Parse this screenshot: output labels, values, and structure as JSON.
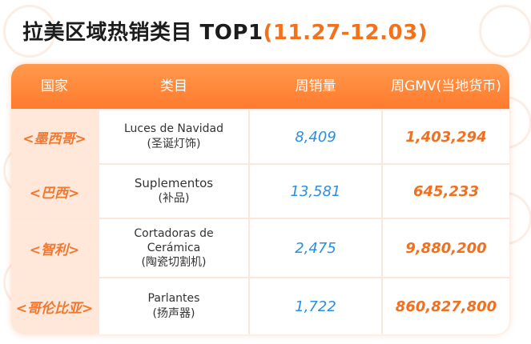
{
  "title": {
    "main": "拉美区域热销类目 TOP1",
    "date": "(11.27-12.03)"
  },
  "table": {
    "headers": [
      "国家",
      "类目",
      "周销量",
      "周GMV(当地货币)"
    ],
    "rows": [
      {
        "country": "<墨西哥>",
        "category_es": "Luces de Navidad",
        "category_zh": "(圣诞灯饰)",
        "weekly_sales": "8,409",
        "weekly_gmv": "1,403,294"
      },
      {
        "country": "<巴西>",
        "category_es": "Suplementos",
        "category_zh": "(补品)",
        "weekly_sales": "13,581",
        "weekly_gmv": "645,233"
      },
      {
        "country": "<智利>",
        "category_es": "Cortadoras de Cerámica",
        "category_zh": "(陶瓷切割机)",
        "weekly_sales": "2,475",
        "weekly_gmv": "9,880,200"
      },
      {
        "country": "<哥伦比亚>",
        "category_es": "Parlantes",
        "category_zh": "(扬声器)",
        "weekly_sales": "1,722",
        "weekly_gmv": "860,827,800"
      }
    ]
  },
  "colors": {
    "header_bg": "#ff8a3a",
    "country_text": "#f07830",
    "sales_text": "#2a8fe0",
    "gmv_text": "#f07020",
    "date_text": "#f2711c"
  }
}
